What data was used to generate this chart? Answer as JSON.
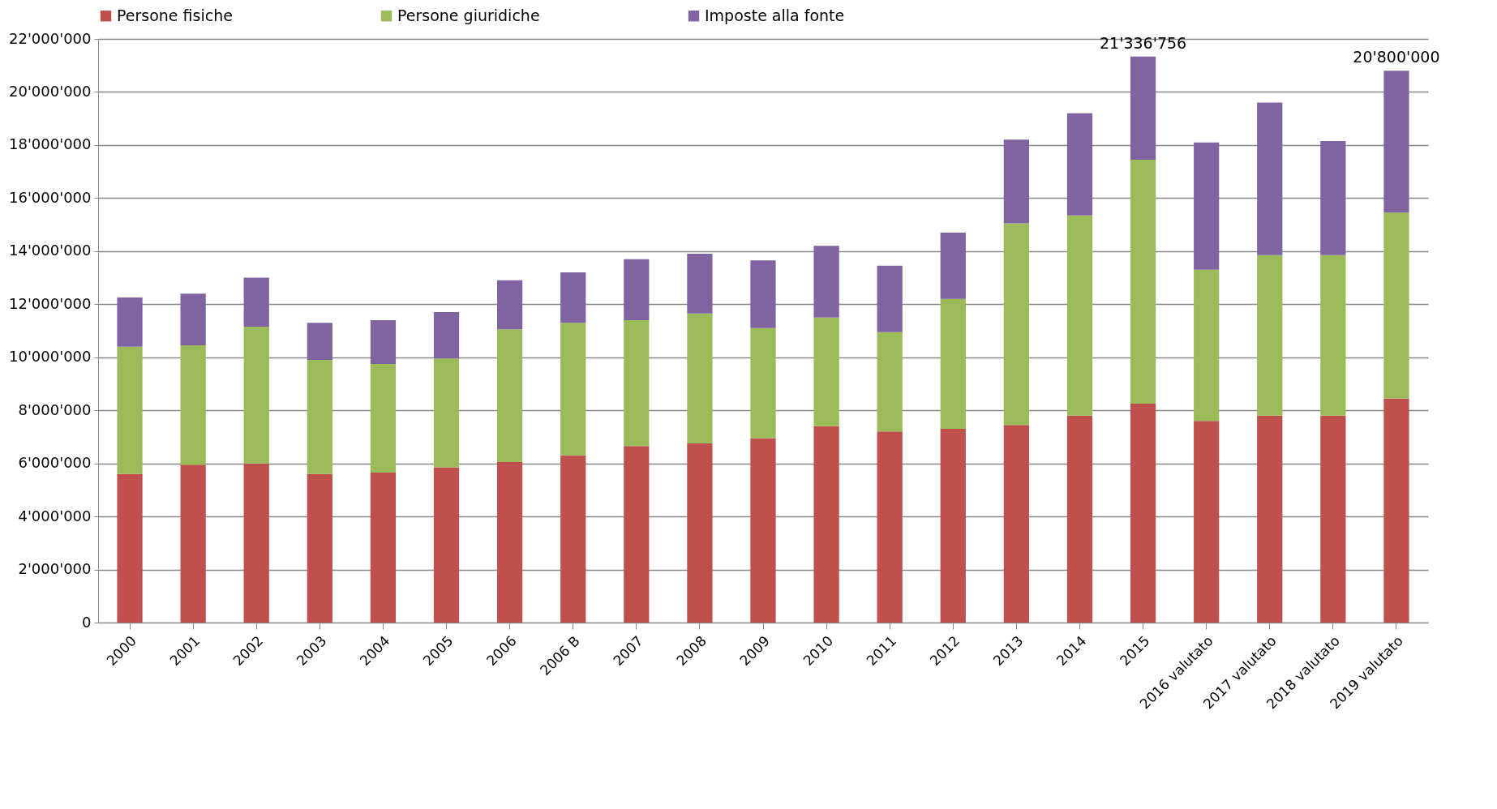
{
  "chart_data": {
    "type": "bar",
    "stacked": true,
    "categories": [
      "2000",
      "2001",
      "2002",
      "2003",
      "2004",
      "2005",
      "2006",
      "2006 B",
      "2007",
      "2008",
      "2009",
      "2010",
      "2011",
      "2012",
      "2013",
      "2014",
      "2015",
      "2016 valutato",
      "2017 valutato",
      "2018 valutato",
      "2019 valutato"
    ],
    "series": [
      {
        "name": "Persone fisiche",
        "color": "#c0504d",
        "values": [
          5600000,
          5950000,
          6000000,
          5600000,
          5650000,
          5850000,
          6050000,
          6300000,
          6650000,
          6750000,
          6950000,
          7400000,
          7200000,
          7300000,
          7450000,
          7800000,
          8250000,
          7600000,
          7800000,
          7800000,
          8450000
        ]
      },
      {
        "name": "Persone giuridiche",
        "color": "#9bbb59",
        "values": [
          4800000,
          4500000,
          5150000,
          4300000,
          4100000,
          4100000,
          5000000,
          5000000,
          4750000,
          4900000,
          4150000,
          4100000,
          3750000,
          4900000,
          7600000,
          7550000,
          9200000,
          5700000,
          6050000,
          6050000,
          7000000
        ]
      },
      {
        "name": "Imposte alla fonte",
        "color": "#8064a2",
        "values": [
          1850000,
          1950000,
          1850000,
          1400000,
          1650000,
          1750000,
          1850000,
          1900000,
          2300000,
          2250000,
          2550000,
          2700000,
          2500000,
          2500000,
          3150000,
          3850000,
          3886756,
          4800000,
          5750000,
          4300000,
          5350000
        ]
      }
    ],
    "totals": [
      null,
      null,
      null,
      null,
      null,
      null,
      null,
      null,
      null,
      null,
      null,
      null,
      null,
      null,
      null,
      null,
      "21'336'756",
      null,
      null,
      null,
      "20'800'000"
    ],
    "ylim": [
      0,
      22000000
    ],
    "yticks": [
      0,
      {
        "value": 2000000,
        "label": "2'000'000"
      },
      {
        "value": 4000000,
        "label": "4'000'000"
      },
      {
        "value": 6000000,
        "label": "6'000'000"
      },
      {
        "value": 8000000,
        "label": "8'000'000"
      },
      {
        "value": 10000000,
        "label": "10'000'000"
      },
      {
        "value": 12000000,
        "label": "12'000'000"
      },
      {
        "value": 14000000,
        "label": "14'000'000"
      },
      {
        "value": 16000000,
        "label": "16'000'000"
      },
      {
        "value": 18000000,
        "label": "18'000'000"
      },
      {
        "value": 20000000,
        "label": "20'000'000"
      },
      {
        "value": 22000000,
        "label": "22'000'000"
      }
    ],
    "grid": "y",
    "legend": "top"
  }
}
